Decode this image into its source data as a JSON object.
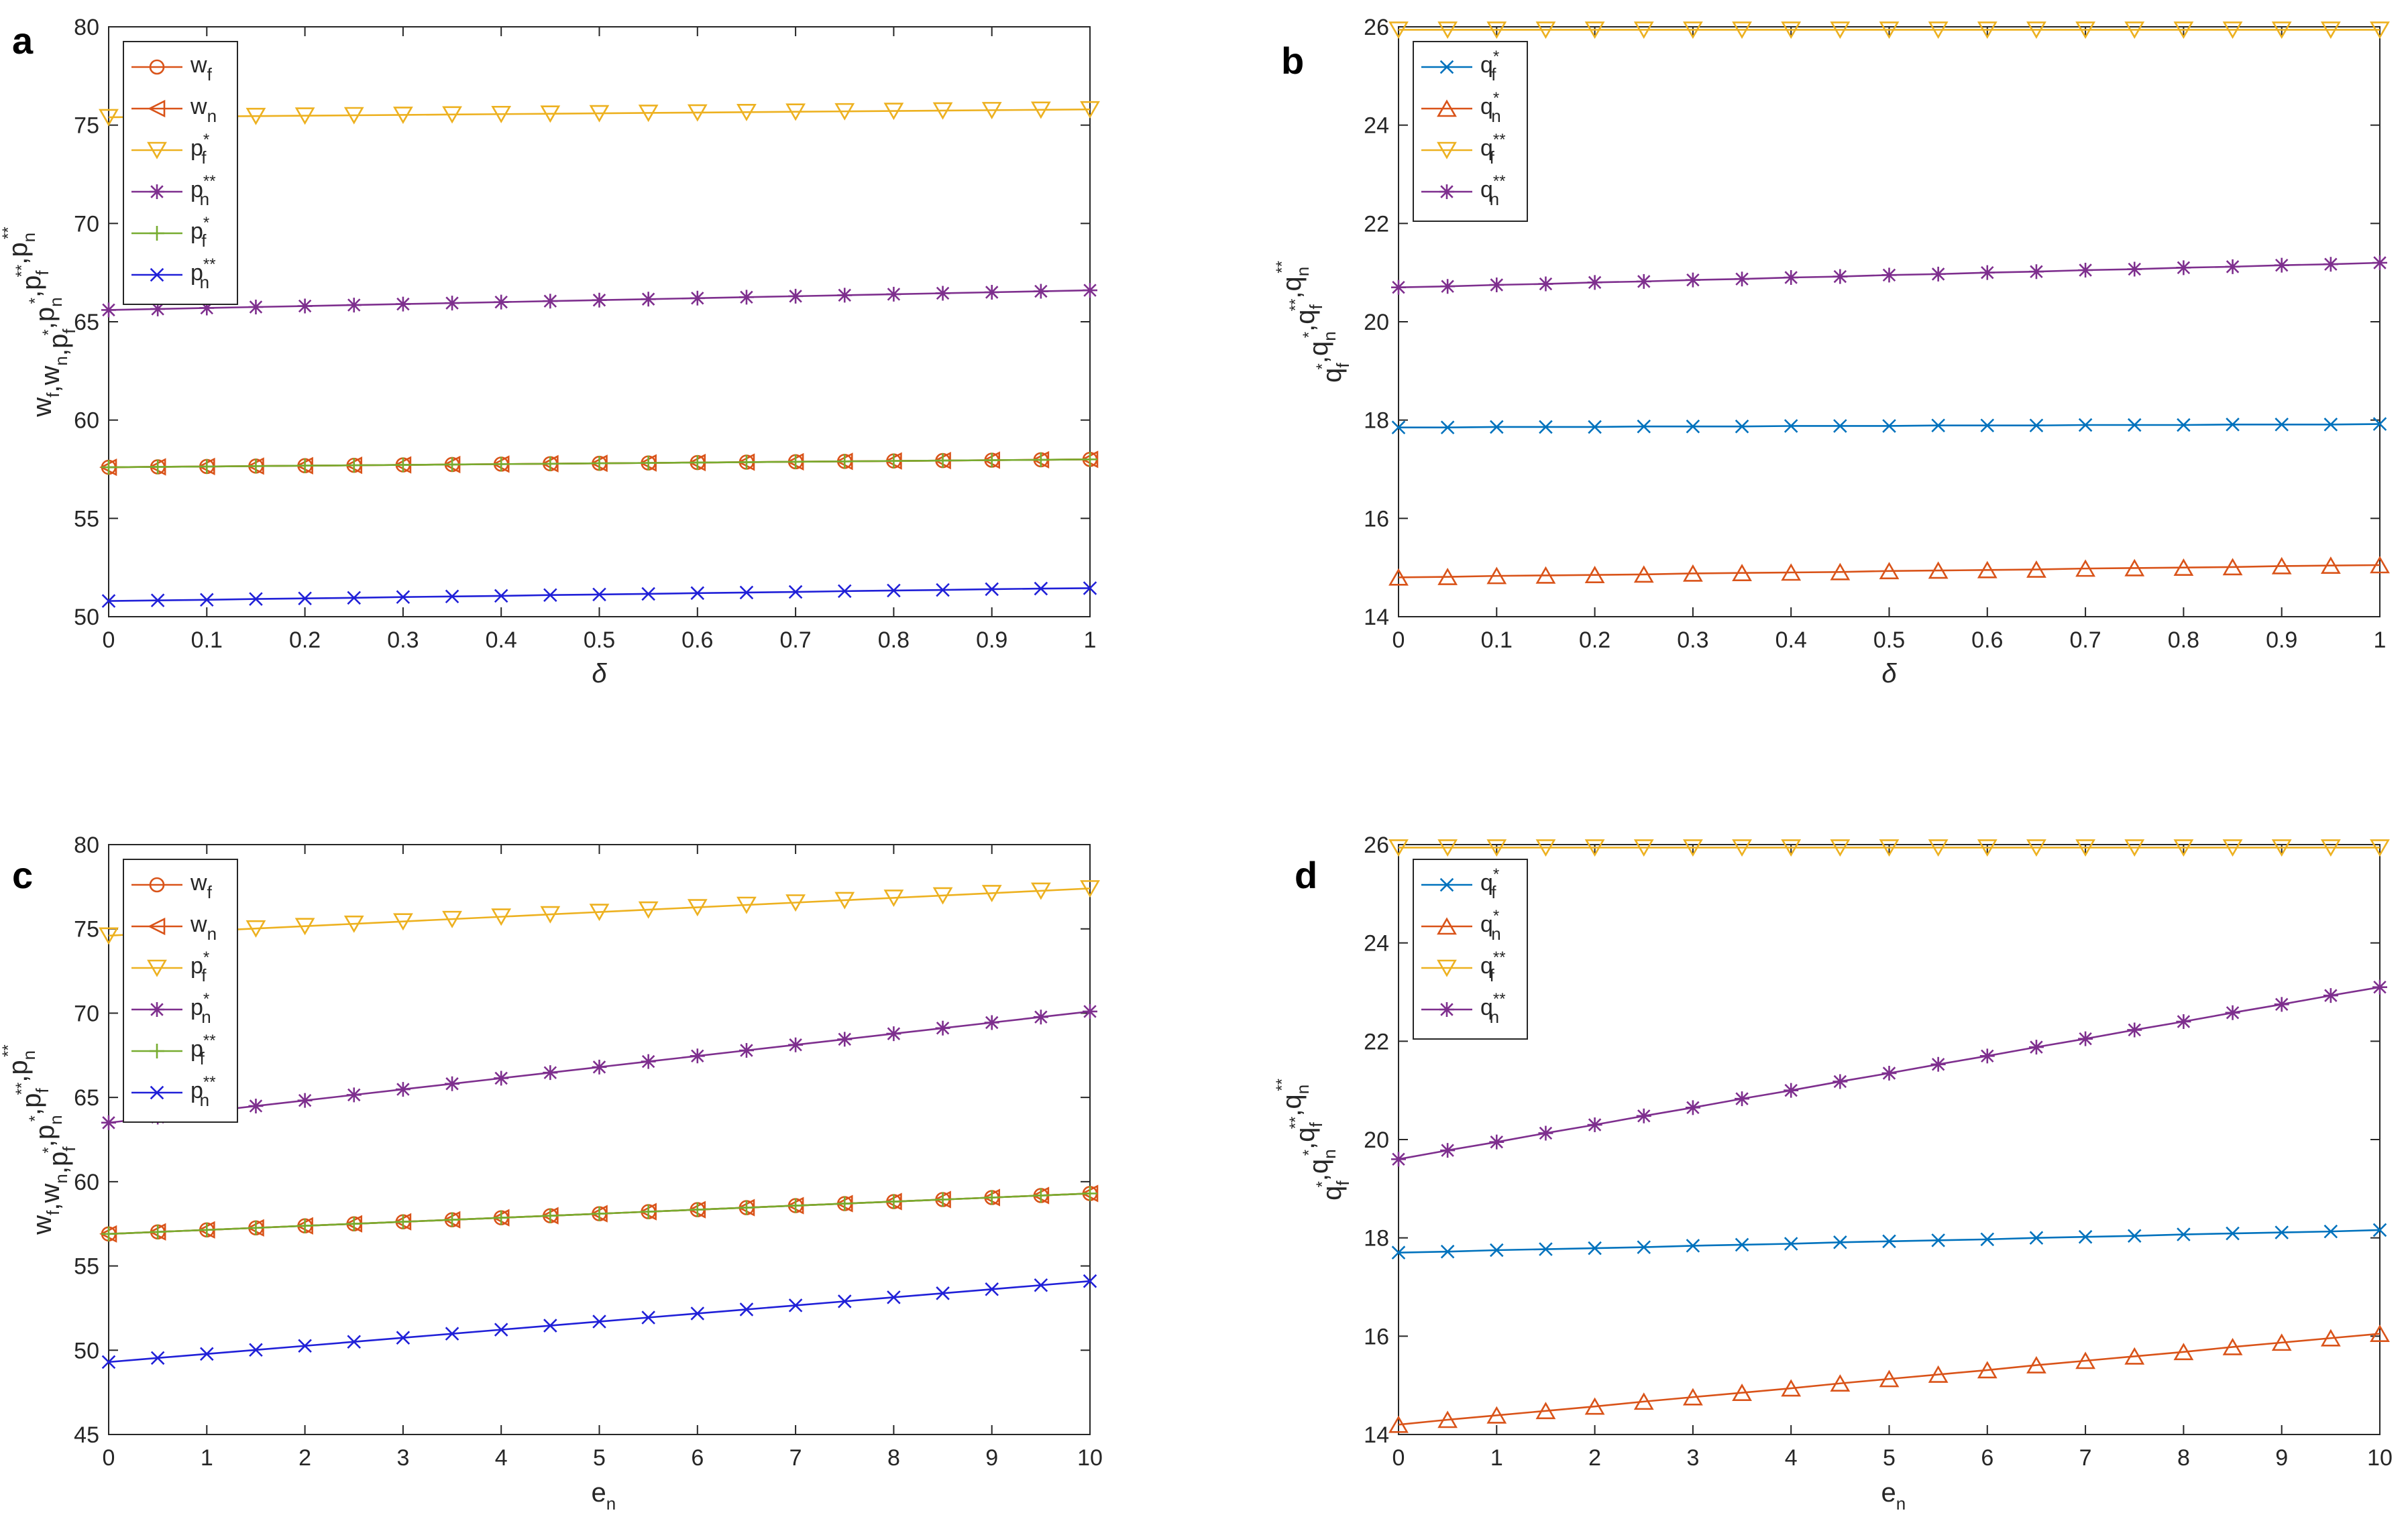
{
  "chart_data": [
    {
      "panel": "a",
      "type": "line",
      "xlabel": "δ",
      "ylabel": "w_f,w_n,p_f^*,p_n^*,p_f^**,p_n^**",
      "ylabel_parts": [
        [
          "w",
          "f",
          ""
        ],
        [
          ",",
          ""
        ],
        [
          "w",
          "n",
          ""
        ],
        [
          ",",
          ""
        ],
        [
          "p",
          "f",
          "*"
        ],
        [
          ",",
          ""
        ],
        [
          "p",
          "n",
          "*"
        ],
        [
          ",",
          ""
        ],
        [
          "p",
          "f",
          "**"
        ],
        [
          ",",
          ""
        ],
        [
          "p",
          "n",
          "**"
        ]
      ],
      "xlim": [
        0,
        1
      ],
      "ylim": [
        50,
        80
      ],
      "xticks": [
        0,
        0.1,
        0.2,
        0.3,
        0.4,
        0.5,
        0.6,
        0.7,
        0.8,
        0.9,
        1
      ],
      "xticklabels": [
        "0",
        "0.1",
        "0.2",
        "0.3",
        "0.4",
        "0.5",
        "0.6",
        "0.7",
        "0.8",
        "0.9",
        "1"
      ],
      "yticks": [
        50,
        55,
        60,
        65,
        70,
        75,
        80
      ],
      "yticklabels": [
        "50",
        "55",
        "60",
        "65",
        "70",
        "75",
        "80"
      ],
      "x": [
        0,
        0.05,
        0.1,
        0.15,
        0.2,
        0.25,
        0.3,
        0.35,
        0.4,
        0.45,
        0.5,
        0.55,
        0.6,
        0.65,
        0.7,
        0.75,
        0.8,
        0.85,
        0.9,
        0.95,
        1
      ],
      "legend_position": "top-left",
      "series": [
        {
          "base": "w",
          "sub": "f",
          "sup": "",
          "color": "#d95319",
          "marker": "circle",
          "values": [
            57.6,
            57.62,
            57.64,
            57.66,
            57.68,
            57.7,
            57.72,
            57.74,
            57.76,
            57.78,
            57.8,
            57.82,
            57.84,
            57.86,
            57.88,
            57.9,
            57.92,
            57.94,
            57.96,
            57.98,
            58.0
          ]
        },
        {
          "base": "w",
          "sub": "n",
          "sup": "",
          "color": "#d95319",
          "marker": "triangle-left",
          "values": [
            57.6,
            57.62,
            57.64,
            57.66,
            57.68,
            57.7,
            57.72,
            57.74,
            57.76,
            57.78,
            57.8,
            57.82,
            57.84,
            57.86,
            57.88,
            57.9,
            57.92,
            57.94,
            57.96,
            57.98,
            58.0
          ]
        },
        {
          "base": "p",
          "sub": "f",
          "sup": "*",
          "color": "#edb120",
          "marker": "triangle-down",
          "values": [
            75.4,
            75.42,
            75.44,
            75.46,
            75.48,
            75.5,
            75.52,
            75.54,
            75.56,
            75.58,
            75.6,
            75.62,
            75.64,
            75.66,
            75.68,
            75.7,
            75.72,
            75.74,
            75.76,
            75.78,
            75.8
          ]
        },
        {
          "base": "p",
          "sub": "n",
          "sup": "**",
          "color": "#7e2f8e",
          "marker": "asterisk",
          "values": [
            65.6,
            65.65,
            65.7,
            65.75,
            65.8,
            65.85,
            65.9,
            65.95,
            66.0,
            66.05,
            66.1,
            66.15,
            66.2,
            66.25,
            66.3,
            66.35,
            66.4,
            66.45,
            66.5,
            66.55,
            66.6
          ]
        },
        {
          "base": "p",
          "sub": "f",
          "sup": "*",
          "color": "#77ac30",
          "marker": "plus",
          "values": [
            57.6,
            57.62,
            57.64,
            57.66,
            57.68,
            57.7,
            57.72,
            57.74,
            57.76,
            57.78,
            57.8,
            57.82,
            57.84,
            57.86,
            57.88,
            57.9,
            57.92,
            57.94,
            57.96,
            57.98,
            58.0
          ]
        },
        {
          "base": "p",
          "sub": "n",
          "sup": "**",
          "color": "#2020d8",
          "marker": "x",
          "values": [
            50.8,
            50.83,
            50.86,
            50.9,
            50.93,
            50.96,
            51.0,
            51.03,
            51.06,
            51.1,
            51.13,
            51.16,
            51.2,
            51.23,
            51.26,
            51.3,
            51.33,
            51.36,
            51.4,
            51.43,
            51.45
          ]
        }
      ]
    },
    {
      "panel": "b",
      "type": "line",
      "xlabel": "δ",
      "ylabel": "q_f^*,q_n^*,q_f^**,q_n^**",
      "ylabel_parts": [
        [
          "q",
          "f",
          "*"
        ],
        [
          ",",
          ""
        ],
        [
          "q",
          "n",
          "*"
        ],
        [
          ",",
          ""
        ],
        [
          "q",
          "f",
          "**"
        ],
        [
          ",",
          ""
        ],
        [
          "q",
          "n",
          "**"
        ]
      ],
      "xlim": [
        0,
        1
      ],
      "ylim": [
        14,
        26
      ],
      "xticks": [
        0,
        0.1,
        0.2,
        0.3,
        0.4,
        0.5,
        0.6,
        0.7,
        0.8,
        0.9,
        1
      ],
      "xticklabels": [
        "0",
        "0.1",
        "0.2",
        "0.3",
        "0.4",
        "0.5",
        "0.6",
        "0.7",
        "0.8",
        "0.9",
        "1"
      ],
      "yticks": [
        14,
        16,
        18,
        20,
        22,
        24,
        26
      ],
      "yticklabels": [
        "14",
        "16",
        "18",
        "20",
        "22",
        "24",
        "26"
      ],
      "x": [
        0,
        0.05,
        0.1,
        0.15,
        0.2,
        0.25,
        0.3,
        0.35,
        0.4,
        0.45,
        0.5,
        0.55,
        0.6,
        0.65,
        0.7,
        0.75,
        0.8,
        0.85,
        0.9,
        0.95,
        1
      ],
      "legend_position": "top-left",
      "series": [
        {
          "base": "q",
          "sub": "f",
          "sup": "*",
          "color": "#0072bd",
          "marker": "x",
          "values": [
            17.85,
            17.85,
            17.86,
            17.86,
            17.86,
            17.87,
            17.87,
            17.87,
            17.88,
            17.88,
            17.88,
            17.89,
            17.89,
            17.89,
            17.9,
            17.9,
            17.9,
            17.91,
            17.91,
            17.91,
            17.92
          ]
        },
        {
          "base": "q",
          "sub": "n",
          "sup": "*",
          "color": "#d95319",
          "marker": "triangle-up",
          "values": [
            14.8,
            14.81,
            14.83,
            14.84,
            14.85,
            14.86,
            14.88,
            14.89,
            14.9,
            14.91,
            14.93,
            14.94,
            14.95,
            14.96,
            14.98,
            14.99,
            15.0,
            15.01,
            15.03,
            15.04,
            15.05
          ]
        },
        {
          "base": "q",
          "sub": "f",
          "sup": "**",
          "color": "#edb120",
          "marker": "triangle-down",
          "values": [
            25.94,
            25.94,
            25.94,
            25.94,
            25.94,
            25.94,
            25.94,
            25.94,
            25.94,
            25.94,
            25.94,
            25.94,
            25.94,
            25.94,
            25.94,
            25.94,
            25.94,
            25.94,
            25.94,
            25.94,
            25.94
          ]
        },
        {
          "base": "q",
          "sub": "n",
          "sup": "**",
          "color": "#7e2f8e",
          "marker": "asterisk",
          "values": [
            20.7,
            20.72,
            20.75,
            20.77,
            20.8,
            20.82,
            20.85,
            20.87,
            20.9,
            20.92,
            20.95,
            20.97,
            21.0,
            21.02,
            21.05,
            21.07,
            21.1,
            21.12,
            21.15,
            21.17,
            21.2
          ]
        }
      ]
    },
    {
      "panel": "c",
      "type": "line",
      "xlabel": "e_n",
      "xlabel_parts": [
        [
          "e",
          "n",
          ""
        ]
      ],
      "ylabel": "w_f,w_n,p_f^*,p_n^*,p_f^**,p_n^**",
      "ylabel_parts": [
        [
          "w",
          "f",
          ""
        ],
        [
          ",",
          ""
        ],
        [
          "w",
          "n",
          ""
        ],
        [
          ",",
          ""
        ],
        [
          "p",
          "f",
          "*"
        ],
        [
          ",",
          ""
        ],
        [
          "p",
          "n",
          "*"
        ],
        [
          ",",
          ""
        ],
        [
          "p",
          "f",
          "**"
        ],
        [
          ",",
          ""
        ],
        [
          "p",
          "n",
          "**"
        ]
      ],
      "xlim": [
        0,
        10
      ],
      "ylim": [
        45,
        80
      ],
      "xticks": [
        0,
        1,
        2,
        3,
        4,
        5,
        6,
        7,
        8,
        9,
        10
      ],
      "xticklabels": [
        "0",
        "1",
        "2",
        "3",
        "4",
        "5",
        "6",
        "7",
        "8",
        "9",
        "10"
      ],
      "yticks": [
        45,
        50,
        55,
        60,
        65,
        70,
        75,
        80
      ],
      "yticklabels": [
        "45",
        "50",
        "55",
        "60",
        "65",
        "70",
        "75",
        "80"
      ],
      "x": [
        0,
        0.5,
        1,
        1.5,
        2,
        2.5,
        3,
        3.5,
        4,
        4.5,
        5,
        5.5,
        6,
        6.5,
        7,
        7.5,
        8,
        8.5,
        9,
        9.5,
        10
      ],
      "legend_position": "top-left",
      "series": [
        {
          "base": "w",
          "sub": "f",
          "sup": "",
          "color": "#d95319",
          "marker": "circle",
          "values": [
            56.9,
            57.02,
            57.14,
            57.26,
            57.38,
            57.5,
            57.62,
            57.74,
            57.86,
            57.98,
            58.1,
            58.22,
            58.34,
            58.46,
            58.58,
            58.7,
            58.82,
            58.94,
            59.06,
            59.18,
            59.3
          ]
        },
        {
          "base": "w",
          "sub": "n",
          "sup": "",
          "color": "#d95319",
          "marker": "triangle-left",
          "values": [
            56.9,
            57.02,
            57.14,
            57.26,
            57.38,
            57.5,
            57.62,
            57.74,
            57.86,
            57.98,
            58.1,
            58.22,
            58.34,
            58.46,
            58.58,
            58.7,
            58.82,
            58.94,
            59.06,
            59.18,
            59.3
          ]
        },
        {
          "base": "p",
          "sub": "f",
          "sup": "*",
          "color": "#edb120",
          "marker": "triangle-down",
          "values": [
            74.6,
            74.74,
            74.88,
            75.02,
            75.16,
            75.3,
            75.44,
            75.58,
            75.72,
            75.86,
            76.0,
            76.14,
            76.28,
            76.42,
            76.56,
            76.7,
            76.84,
            76.98,
            77.12,
            77.26,
            77.4
          ]
        },
        {
          "base": "p",
          "sub": "n",
          "sup": "*",
          "color": "#7e2f8e",
          "marker": "asterisk",
          "values": [
            63.5,
            63.83,
            64.16,
            64.49,
            64.82,
            65.15,
            65.48,
            65.81,
            66.14,
            66.47,
            66.8,
            67.13,
            67.46,
            67.79,
            68.12,
            68.45,
            68.78,
            69.11,
            69.44,
            69.77,
            70.1
          ]
        },
        {
          "base": "p",
          "sub": "f",
          "sup": "**",
          "color": "#77ac30",
          "marker": "plus",
          "values": [
            56.9,
            57.02,
            57.14,
            57.26,
            57.38,
            57.5,
            57.62,
            57.74,
            57.86,
            57.98,
            58.1,
            58.22,
            58.34,
            58.46,
            58.58,
            58.7,
            58.82,
            58.94,
            59.06,
            59.18,
            59.3
          ]
        },
        {
          "base": "p",
          "sub": "n",
          "sup": "**",
          "color": "#2020d8",
          "marker": "x",
          "values": [
            49.3,
            49.54,
            49.78,
            50.02,
            50.26,
            50.5,
            50.74,
            50.98,
            51.22,
            51.46,
            51.7,
            51.94,
            52.18,
            52.42,
            52.66,
            52.9,
            53.14,
            53.38,
            53.62,
            53.86,
            54.1
          ]
        }
      ]
    },
    {
      "panel": "d",
      "type": "line",
      "xlabel": "e_n",
      "xlabel_parts": [
        [
          "e",
          "n",
          ""
        ]
      ],
      "ylabel": "q_f^*,q_n^*,q_f^**,q_n^**",
      "ylabel_parts": [
        [
          "q",
          "f",
          "*"
        ],
        [
          ",",
          ""
        ],
        [
          "q",
          "n",
          "*"
        ],
        [
          ",",
          ""
        ],
        [
          "q",
          "f",
          "**"
        ],
        [
          ",",
          ""
        ],
        [
          "q",
          "n",
          "**"
        ]
      ],
      "xlim": [
        0,
        10
      ],
      "ylim": [
        14,
        26
      ],
      "xticks": [
        0,
        1,
        2,
        3,
        4,
        5,
        6,
        7,
        8,
        9,
        10
      ],
      "xticklabels": [
        "0",
        "1",
        "2",
        "3",
        "4",
        "5",
        "6",
        "7",
        "8",
        "9",
        "10"
      ],
      "yticks": [
        14,
        16,
        18,
        20,
        22,
        24,
        26
      ],
      "yticklabels": [
        "14",
        "16",
        "18",
        "20",
        "22",
        "24",
        "26"
      ],
      "x": [
        0,
        0.5,
        1,
        1.5,
        2,
        2.5,
        3,
        3.5,
        4,
        4.5,
        5,
        5.5,
        6,
        6.5,
        7,
        7.5,
        8,
        8.5,
        9,
        9.5,
        10
      ],
      "legend_position": "top-left",
      "series": [
        {
          "base": "q",
          "sub": "f",
          "sup": "*",
          "color": "#0072bd",
          "marker": "x",
          "values": [
            17.7,
            17.72,
            17.75,
            17.77,
            17.79,
            17.81,
            17.84,
            17.86,
            17.88,
            17.91,
            17.93,
            17.95,
            17.97,
            18.0,
            18.02,
            18.04,
            18.07,
            18.09,
            18.11,
            18.13,
            18.16
          ]
        },
        {
          "base": "q",
          "sub": "n",
          "sup": "*",
          "color": "#d95319",
          "marker": "triangle-up",
          "values": [
            14.2,
            14.3,
            14.39,
            14.48,
            14.57,
            14.67,
            14.76,
            14.85,
            14.94,
            15.04,
            15.13,
            15.22,
            15.31,
            15.41,
            15.5,
            15.59,
            15.68,
            15.78,
            15.87,
            15.96,
            16.05
          ]
        },
        {
          "base": "q",
          "sub": "f",
          "sup": "**",
          "color": "#edb120",
          "marker": "triangle-down",
          "values": [
            25.94,
            25.94,
            25.94,
            25.94,
            25.94,
            25.94,
            25.94,
            25.94,
            25.94,
            25.94,
            25.94,
            25.94,
            25.94,
            25.94,
            25.94,
            25.94,
            25.94,
            25.94,
            25.94,
            25.94,
            25.94
          ]
        },
        {
          "base": "q",
          "sub": "n",
          "sup": "**",
          "color": "#7e2f8e",
          "marker": "asterisk",
          "values": [
            19.6,
            19.78,
            19.95,
            20.13,
            20.3,
            20.48,
            20.65,
            20.83,
            21.0,
            21.18,
            21.35,
            21.53,
            21.7,
            21.88,
            22.05,
            22.23,
            22.4,
            22.58,
            22.75,
            22.93,
            23.1
          ]
        }
      ]
    }
  ]
}
